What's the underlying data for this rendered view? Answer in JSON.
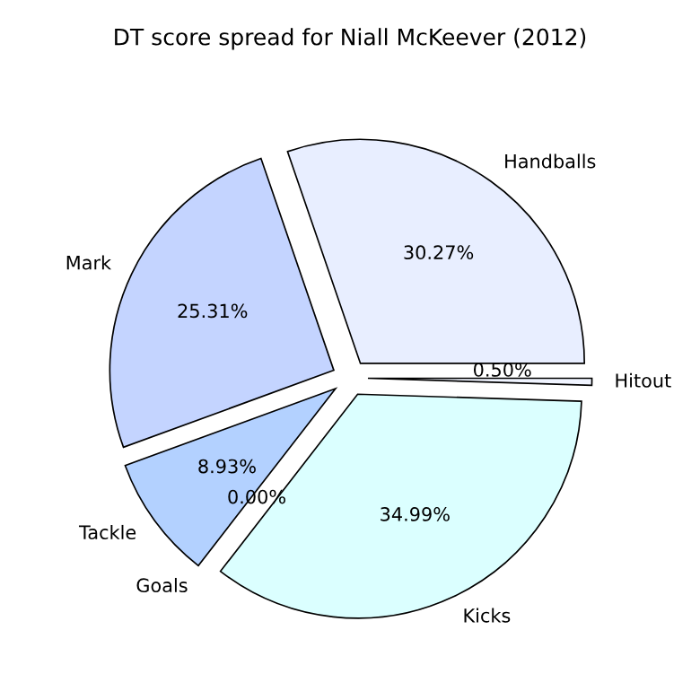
{
  "chart_data": {
    "type": "pie",
    "title": "DT score spread for Niall McKeever (2012)",
    "categories": [
      "Handballs",
      "Mark",
      "Tackle",
      "Goals",
      "Kicks",
      "Hitout"
    ],
    "values": [
      30.27,
      25.31,
      8.93,
      0.0,
      34.99,
      0.5
    ],
    "value_labels": [
      "30.27%",
      "25.31%",
      "8.93%",
      "0.00%",
      "34.99%",
      "0.50%"
    ],
    "colors": [
      "#e8eeff",
      "#c4d4ff",
      "#b3d1ff",
      "#c0d8ff",
      "#dbffff",
      "#f0f4ff"
    ],
    "legend": false
  }
}
